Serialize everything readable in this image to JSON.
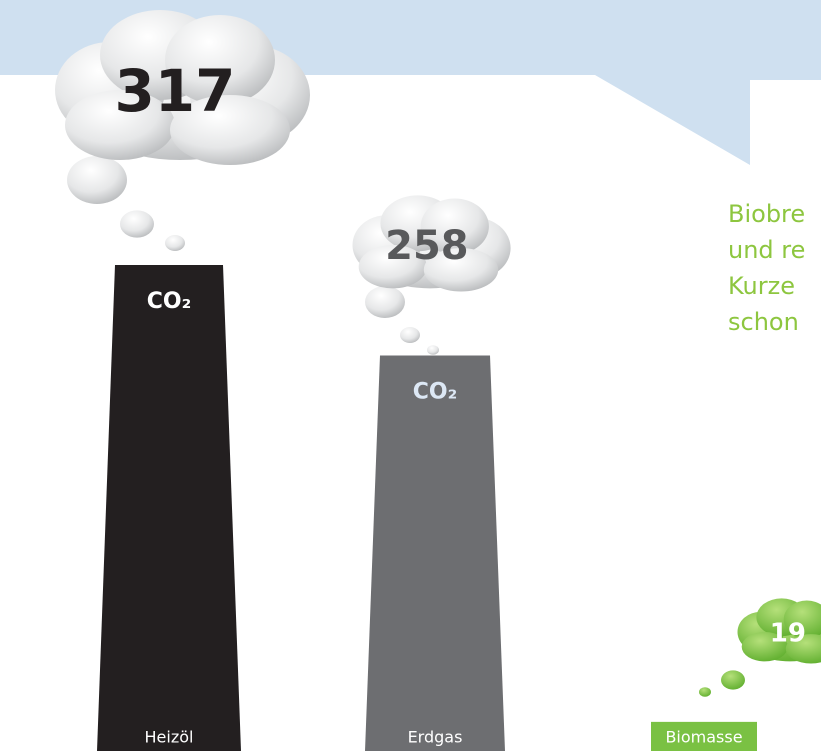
{
  "chart_data": {
    "type": "bar",
    "categories": [
      "Heizöl",
      "Erdgas",
      "Biomasse"
    ],
    "values": [
      317,
      258,
      19
    ],
    "colors": [
      "#231f20",
      "#6d6e71",
      "#7ac143"
    ],
    "co2_label": "CO₂",
    "annotation_lines": [
      "Biobre",
      "und re",
      "Kurze",
      "schon"
    ]
  }
}
